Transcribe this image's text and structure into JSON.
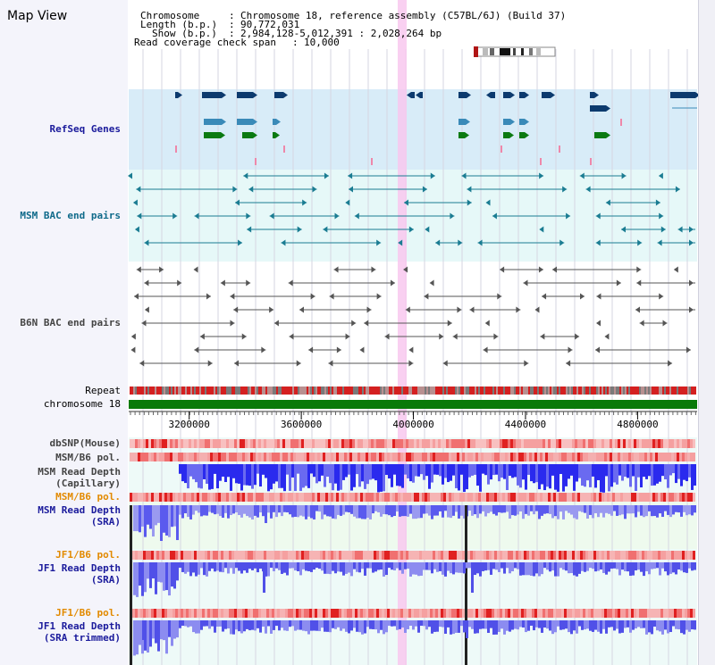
{
  "view_title": "Map View",
  "header": {
    "chromosome_label": "Chromosome",
    "chromosome_value": "Chromosome 18, reference assembly (C57BL/6J) (Build 37)",
    "length_label": "Length (b.p.)",
    "length_value": "90,772,031",
    "show_label": "Show (b.p.)",
    "show_value": "2,984,128-5,012,391 : 2,028,264 bp",
    "coverage_label": "Read coverage check span",
    "coverage_value": "10,000"
  },
  "tracks": {
    "refseq": "RefSeq Genes",
    "msm_bac": "MSM BAC end pairs",
    "b6n_bac": "B6N BAC end pairs",
    "repeat": "Repeat",
    "chromosome": "chromosome 18",
    "dbsnp": "dbSNP(Mouse)",
    "msm_b6_pol": "MSM/B6 pol.",
    "msm_read_depth_cap_1": "MSM Read Depth",
    "msm_read_depth_cap_2": "(Capillary)",
    "msm_b6_pol_2": "MSM/B6 pol.",
    "msm_read_depth_sra_1": "MSM Read Depth",
    "msm_read_depth_sra_2": "(SRA)",
    "jf1_b6_pol": "JF1/B6 pol.",
    "jf1_read_depth_sra_1": "JF1 Read Depth",
    "jf1_read_depth_sra_2": "(SRA)",
    "jf1_b6_pol_2": "JF1/B6 pol.",
    "jf1_read_depth_trim_1": "JF1 Read Depth",
    "jf1_read_depth_trim_2": "(SRA trimmed)"
  },
  "axis": {
    "range_bp": [
      2984128,
      5012391
    ],
    "ticks": [
      {
        "value": 3200000,
        "label": "3200000"
      },
      {
        "value": 3600000,
        "label": "3600000"
      },
      {
        "value": 4000000,
        "label": "4000000"
      },
      {
        "value": 4400000,
        "label": "4400000"
      },
      {
        "value": 4800000,
        "label": "4800000"
      }
    ]
  },
  "highlight_bp": 3960000,
  "colors": {
    "refseq_bg": "#d8ecf8",
    "msm_bac_bg": "#e6f8f8",
    "gene_dark": "#0c3a6e",
    "gene_mid": "#3a8ab8",
    "gene_green": "#0b7a12",
    "gene_pink": "#ee88aa",
    "msm_pair": "#1a7c92",
    "b6n_pair": "#555555",
    "chrom_green": "#0a7a0a",
    "highlight": "#f8c8ee",
    "depth_blue": "#2222dd",
    "depth_light": "#8a8aee",
    "label_blue": "#1b1b9c",
    "label_teal": "#0f6a8a",
    "label_orange": "#e28a00",
    "label_gray": "#444444"
  }
}
